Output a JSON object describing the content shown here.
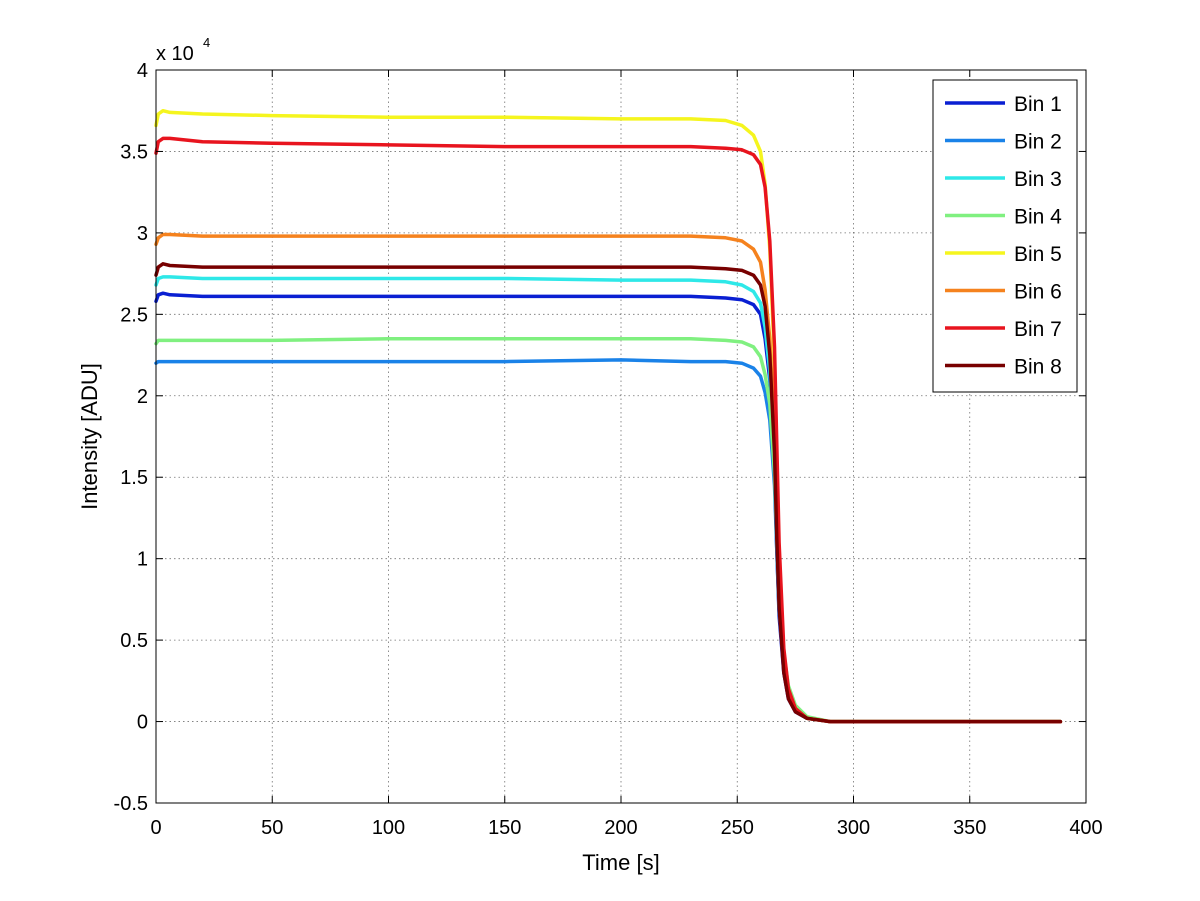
{
  "chart_data": {
    "type": "line",
    "xlabel": "Time [s]",
    "ylabel": "Intensity [ADU]",
    "y_exponent_base": "x 10",
    "y_exponent_power": "4",
    "xlim": [
      0,
      400
    ],
    "ylim": [
      -0.5,
      4
    ],
    "xticks": [
      0,
      50,
      100,
      150,
      200,
      250,
      300,
      350,
      400
    ],
    "yticks": [
      -0.5,
      0,
      0.5,
      1,
      1.5,
      2,
      2.5,
      3,
      3.5,
      4
    ],
    "xtick_labels": [
      "0",
      "50",
      "100",
      "150",
      "200",
      "250",
      "300",
      "350",
      "400"
    ],
    "ytick_labels": [
      "-0.5",
      "0",
      "0.5",
      "1",
      "1.5",
      "2",
      "2.5",
      "3",
      "3.5",
      "4"
    ],
    "grid": true,
    "legend_position": "top-right",
    "series": [
      {
        "name": "Bin 1",
        "color": "#0a1fd2",
        "x": [
          0,
          1,
          3,
          6,
          20,
          50,
          100,
          150,
          200,
          230,
          245,
          252,
          257,
          260,
          262,
          264,
          266,
          267,
          268,
          270,
          272,
          275,
          280,
          290,
          300,
          330,
          360,
          389
        ],
        "y": [
          2.58,
          2.62,
          2.63,
          2.62,
          2.61,
          2.61,
          2.61,
          2.61,
          2.61,
          2.61,
          2.6,
          2.59,
          2.56,
          2.5,
          2.35,
          2.1,
          1.55,
          1.05,
          0.65,
          0.3,
          0.14,
          0.06,
          0.02,
          0.0,
          0.0,
          0.0,
          0.0,
          0.0
        ]
      },
      {
        "name": "Bin 2",
        "color": "#1a82e8",
        "x": [
          0,
          1,
          3,
          6,
          20,
          50,
          100,
          150,
          200,
          230,
          245,
          252,
          257,
          260,
          262,
          264,
          266,
          267,
          268,
          270,
          272,
          275,
          280,
          290,
          300,
          330,
          360,
          389
        ],
        "y": [
          2.2,
          2.21,
          2.21,
          2.21,
          2.21,
          2.21,
          2.21,
          2.21,
          2.22,
          2.21,
          2.21,
          2.2,
          2.17,
          2.12,
          2.02,
          1.85,
          1.45,
          1.05,
          0.68,
          0.33,
          0.16,
          0.07,
          0.02,
          0.0,
          0.0,
          0.0,
          0.0,
          0.0
        ]
      },
      {
        "name": "Bin 3",
        "color": "#2ee8e8",
        "x": [
          0,
          1,
          3,
          6,
          20,
          50,
          100,
          150,
          200,
          230,
          245,
          252,
          257,
          260,
          262,
          264,
          266,
          267,
          268,
          270,
          272,
          275,
          280,
          290,
          300,
          330,
          360,
          389
        ],
        "y": [
          2.68,
          2.72,
          2.73,
          2.73,
          2.72,
          2.72,
          2.72,
          2.72,
          2.71,
          2.71,
          2.7,
          2.68,
          2.64,
          2.57,
          2.42,
          2.15,
          1.6,
          1.1,
          0.7,
          0.34,
          0.16,
          0.07,
          0.02,
          0.0,
          0.0,
          0.0,
          0.0,
          0.0
        ]
      },
      {
        "name": "Bin 4",
        "color": "#80f080",
        "x": [
          0,
          1,
          3,
          6,
          20,
          50,
          100,
          150,
          200,
          230,
          245,
          252,
          257,
          260,
          262,
          264,
          266,
          267,
          268,
          270,
          272,
          275,
          280,
          290,
          300,
          330,
          360,
          389
        ],
        "y": [
          2.32,
          2.34,
          2.34,
          2.34,
          2.34,
          2.34,
          2.35,
          2.35,
          2.35,
          2.35,
          2.34,
          2.33,
          2.3,
          2.24,
          2.13,
          1.95,
          1.52,
          1.15,
          0.78,
          0.42,
          0.22,
          0.1,
          0.03,
          0.0,
          0.0,
          0.0,
          0.0,
          0.0
        ]
      },
      {
        "name": "Bin 5",
        "color": "#f5f51e",
        "x": [
          0,
          1,
          3,
          6,
          20,
          50,
          100,
          150,
          200,
          230,
          245,
          252,
          257,
          260,
          262,
          264,
          266,
          267,
          268,
          270,
          272,
          275,
          280,
          290,
          300,
          330,
          360,
          389
        ],
        "y": [
          3.66,
          3.73,
          3.75,
          3.74,
          3.73,
          3.72,
          3.71,
          3.71,
          3.7,
          3.7,
          3.69,
          3.66,
          3.6,
          3.5,
          3.3,
          2.9,
          2.2,
          1.6,
          1.0,
          0.4,
          0.18,
          0.07,
          0.02,
          0.0,
          0.0,
          0.0,
          0.0,
          0.0
        ]
      },
      {
        "name": "Bin 6",
        "color": "#f5821e",
        "x": [
          0,
          1,
          3,
          6,
          20,
          50,
          100,
          150,
          200,
          230,
          245,
          252,
          257,
          260,
          262,
          264,
          266,
          267,
          268,
          270,
          272,
          275,
          280,
          290,
          300,
          330,
          360,
          389
        ],
        "y": [
          2.93,
          2.97,
          2.99,
          2.99,
          2.98,
          2.98,
          2.98,
          2.98,
          2.98,
          2.98,
          2.97,
          2.95,
          2.9,
          2.82,
          2.65,
          2.35,
          1.75,
          1.2,
          0.75,
          0.35,
          0.16,
          0.07,
          0.02,
          0.0,
          0.0,
          0.0,
          0.0,
          0.0
        ]
      },
      {
        "name": "Bin 7",
        "color": "#e8141e",
        "x": [
          0,
          1,
          3,
          6,
          20,
          50,
          100,
          150,
          200,
          230,
          245,
          252,
          257,
          260,
          262,
          264,
          266,
          267,
          268,
          270,
          272,
          275,
          280,
          290,
          300,
          330,
          360,
          389
        ],
        "y": [
          3.49,
          3.56,
          3.58,
          3.58,
          3.56,
          3.55,
          3.54,
          3.53,
          3.53,
          3.53,
          3.52,
          3.51,
          3.48,
          3.42,
          3.28,
          2.95,
          2.3,
          1.7,
          1.1,
          0.45,
          0.2,
          0.08,
          0.02,
          0.0,
          0.0,
          0.0,
          0.0,
          0.0
        ]
      },
      {
        "name": "Bin 8",
        "color": "#780000",
        "x": [
          0,
          1,
          3,
          6,
          20,
          50,
          100,
          150,
          200,
          230,
          245,
          252,
          257,
          260,
          262,
          264,
          266,
          267,
          268,
          270,
          272,
          275,
          280,
          290,
          300,
          330,
          360,
          389
        ],
        "y": [
          2.74,
          2.79,
          2.81,
          2.8,
          2.79,
          2.79,
          2.79,
          2.79,
          2.79,
          2.79,
          2.78,
          2.77,
          2.74,
          2.68,
          2.55,
          2.25,
          1.65,
          1.12,
          0.7,
          0.3,
          0.14,
          0.06,
          0.02,
          0.0,
          0.0,
          0.0,
          0.0,
          0.0
        ]
      }
    ]
  }
}
